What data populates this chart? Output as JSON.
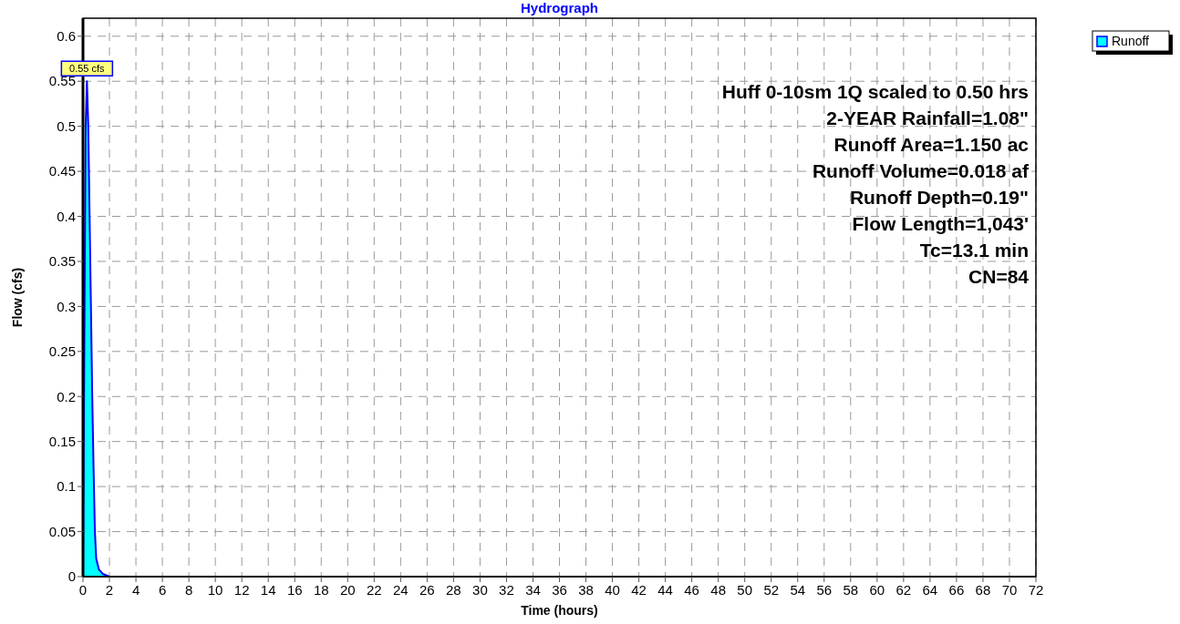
{
  "chart_data": {
    "type": "area",
    "title": "Hydrograph",
    "xlabel": "Time  (hours)",
    "ylabel": "Flow  (cfs)",
    "x": [
      0,
      0.1,
      0.2,
      0.3,
      0.4,
      0.5,
      0.6,
      0.7,
      0.8,
      0.9,
      1,
      1.2,
      1.5,
      2,
      72
    ],
    "series": [
      {
        "name": "Runoff",
        "color": "#00ffff",
        "values": [
          0,
          0.25,
          0.5,
          0.55,
          0.5,
          0.4,
          0.3,
          0.2,
          0.12,
          0.05,
          0.02,
          0.008,
          0.003,
          0,
          0
        ]
      }
    ],
    "xlim": [
      0,
      72
    ],
    "xticks": [
      0,
      2,
      4,
      6,
      8,
      10,
      12,
      14,
      16,
      18,
      20,
      22,
      24,
      26,
      28,
      30,
      32,
      34,
      36,
      38,
      40,
      42,
      44,
      46,
      48,
      50,
      52,
      54,
      56,
      58,
      60,
      62,
      64,
      66,
      68,
      70,
      72
    ],
    "ylim": [
      0,
      0.62
    ],
    "yticks": [
      0,
      0.05,
      0.1,
      0.15,
      0.2,
      0.25,
      0.3,
      0.35,
      0.4,
      0.45,
      0.5,
      0.55,
      0.6
    ],
    "grid": true,
    "legend": "top right",
    "annotations": [
      {
        "text": "0.55 cfs",
        "x": 0.3,
        "y": 0.55
      },
      "Huff 0-10sm 1Q scaled to 0.50 hrs",
      "2-YEAR Rainfall=1.08\"",
      "Runoff Area=1.150 ac",
      "Runoff Volume=0.018 af",
      "Runoff Depth=0.19\"",
      "Flow Length=1,043'",
      "Tc=13.1 min",
      "CN=84"
    ]
  }
}
